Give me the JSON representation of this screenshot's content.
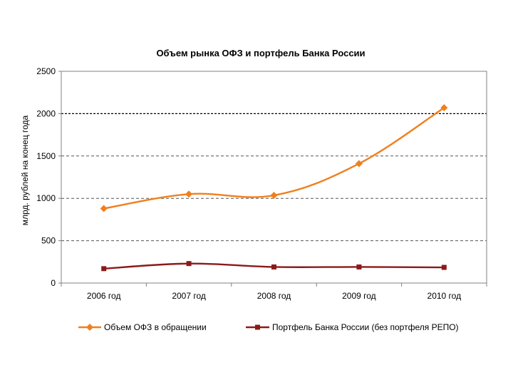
{
  "chart_data": {
    "type": "line",
    "title": "Объем рынка ОФЗ и портфель Банка России",
    "ylabel": "млрд. рублей на конец года",
    "xlabel": "",
    "categories": [
      "2006 год",
      "2007 год",
      "2008 год",
      "2009 год",
      "2010 год"
    ],
    "ylim": [
      0,
      2500
    ],
    "yticks": [
      0,
      500,
      1000,
      1500,
      2000,
      2500
    ],
    "grid": true,
    "legend_position": "bottom",
    "series": [
      {
        "name": "Объем ОФЗ в обращении",
        "values": [
          880,
          1050,
          1035,
          1410,
          2070
        ],
        "color": "#f07f1e",
        "marker": "diamond"
      },
      {
        "name": "Портфель Банка России (без портфеля РЕПО)",
        "values": [
          170,
          230,
          190,
          190,
          185
        ],
        "color": "#8b1a1a",
        "marker": "square"
      }
    ]
  }
}
